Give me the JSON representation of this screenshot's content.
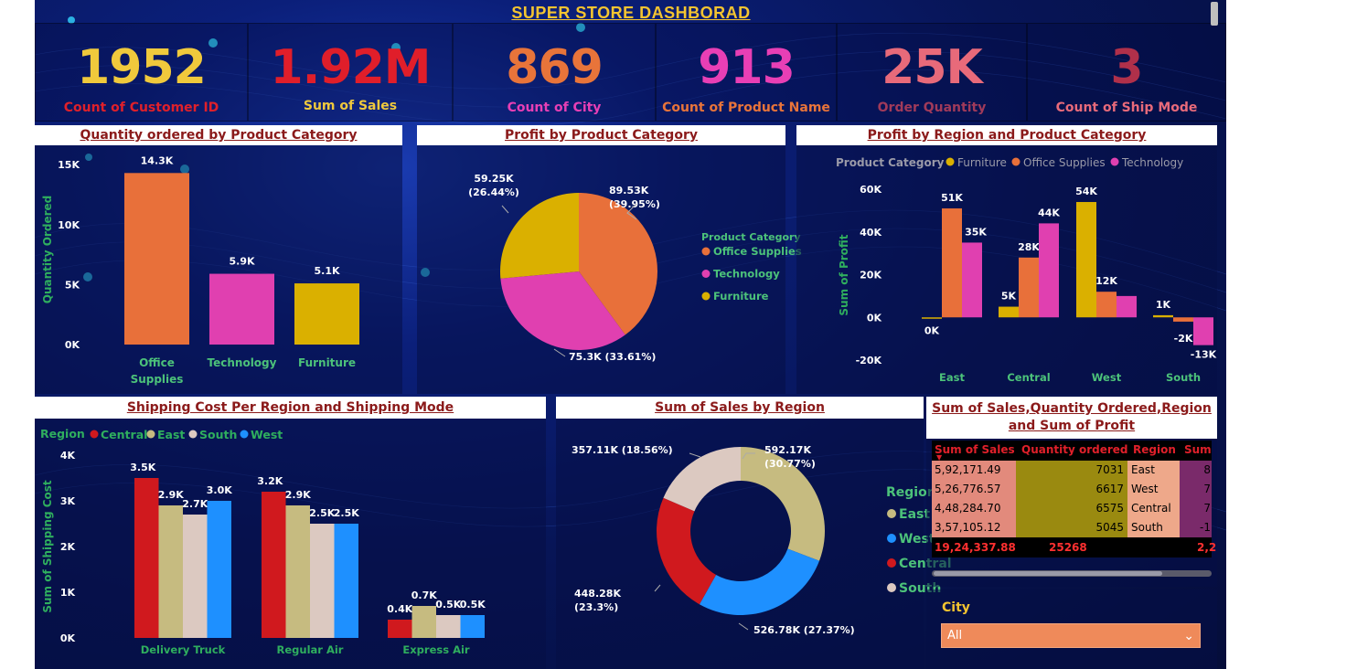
{
  "title": "SUPER STORE DASHBORAD",
  "kpis": [
    {
      "value": "1952",
      "label": "Count of Customer ID",
      "value_color": "#f0c93c",
      "label_color": "#e0202a"
    },
    {
      "value": "1.92M",
      "label": "Sum of Sales",
      "value_color": "#e01e2a",
      "label_color": "#f0c93c"
    },
    {
      "value": "869",
      "label": "Count of City",
      "value_color": "#e8743a",
      "label_color": "#e83fb5"
    },
    {
      "value": "913",
      "label": "Count of Product Name",
      "value_color": "#e83fb5",
      "label_color": "#e8743a"
    },
    {
      "value": "25K",
      "label": "Order Quantity",
      "value_color": "#e86a7a",
      "label_color": "#a03a5a"
    },
    {
      "value": "3",
      "label": "Count of Ship Mode",
      "value_color": "#b0304a",
      "label_color": "#e86a7a"
    }
  ],
  "colors": {
    "orange": "#e8703a",
    "pink": "#e040b0",
    "gold": "#dab000",
    "red": "#d0191e",
    "khaki": "#c6bb80",
    "beige": "#dcc9c1",
    "blue": "#1e90ff",
    "axis_green": "#2fae5e",
    "legend_green": "#4cc27a",
    "text_white": "#ffffff",
    "title_red": "#8b1a1a"
  },
  "charts": {
    "qty_by_category": {
      "title": "Quantity ordered by Product Category",
      "chart_data": {
        "type": "bar",
        "categories": [
          "Office Supplies",
          "Technology",
          "Furniture"
        ],
        "category_lines": [
          [
            "Office",
            "Supplies"
          ],
          [
            "Technology"
          ],
          [
            "Furniture"
          ]
        ],
        "values": [
          14300,
          5900,
          5100
        ],
        "data_labels": [
          "14.3K",
          "5.9K",
          "5.1K"
        ],
        "colors": [
          "#e8703a",
          "#e040b0",
          "#dab000"
        ],
        "ylabel": "Quantity Ordered",
        "ylim": [
          0,
          16000
        ],
        "yticks": [
          0,
          5000,
          10000,
          15000
        ],
        "ytick_labels": [
          "0K",
          "5K",
          "10K",
          "15K"
        ]
      }
    },
    "profit_by_category": {
      "title": "Profit by Product Category",
      "legend_title": "Product Category",
      "chart_data": {
        "type": "pie",
        "labels": [
          "Office Supplies",
          "Technology",
          "Furniture"
        ],
        "values": [
          89530,
          75300,
          59250
        ],
        "data_labels": [
          "89.53K (39.95%)",
          "75.3K (33.61%)",
          "59.25K (26.44%)"
        ],
        "colors": [
          "#e8703a",
          "#e040b0",
          "#dab000"
        ],
        "legend": "right"
      }
    },
    "profit_by_region_category": {
      "title": "Profit by Region and Product Category",
      "legend_title": "Product Category",
      "chart_data": {
        "type": "bar",
        "categories": [
          "East",
          "Central",
          "West",
          "South"
        ],
        "series": [
          {
            "name": "Furniture",
            "values": [
              0,
              5000,
              54000,
              1000
            ],
            "labels": [
              "0K",
              "5K",
              "54K",
              "1K"
            ],
            "color": "#dab000"
          },
          {
            "name": "Office Supplies",
            "values": [
              51000,
              28000,
              12000,
              -2000
            ],
            "labels": [
              "51K",
              "28K",
              "12K",
              "-2K"
            ],
            "color": "#e8703a"
          },
          {
            "name": "Technology",
            "values": [
              35000,
              44000,
              10000,
              -13000
            ],
            "labels": [
              "35K",
              "44K",
              "",
              "-13K"
            ],
            "color": "#e040b0"
          }
        ],
        "ylabel": "Sum of Profit",
        "ylim": [
          -20000,
          60000
        ],
        "yticks": [
          -20000,
          0,
          20000,
          40000,
          60000
        ],
        "ytick_labels": [
          "-20K",
          "0K",
          "20K",
          "40K",
          "60K"
        ],
        "legend": "top-left"
      }
    },
    "shipping_cost": {
      "title": "Shipping Cost Per Region and Shipping Mode",
      "legend_title": "Region",
      "chart_data": {
        "type": "bar",
        "categories": [
          "Delivery Truck",
          "Regular Air",
          "Express Air"
        ],
        "series": [
          {
            "name": "Central",
            "values": [
              3500,
              3200,
              400
            ],
            "labels": [
              "3.5K",
              "3.2K",
              "0.4K"
            ],
            "color": "#d0191e"
          },
          {
            "name": "East",
            "values": [
              2900,
              2900,
              700
            ],
            "labels": [
              "2.9K",
              "2.9K",
              "0.7K"
            ],
            "color": "#c6bb80"
          },
          {
            "name": "South",
            "values": [
              2700,
              2500,
              500
            ],
            "labels": [
              "2.7K",
              "2.5K",
              "0.5K"
            ],
            "color": "#dcc9c1"
          },
          {
            "name": "West",
            "values": [
              3000,
              2500,
              500
            ],
            "labels": [
              "3.0K",
              "2.5K",
              "0.5K"
            ],
            "color": "#1e90ff"
          }
        ],
        "ylabel": "Sum of Shipping Cost",
        "ylim": [
          0,
          4000
        ],
        "yticks": [
          0,
          1000,
          2000,
          3000,
          4000
        ],
        "ytick_labels": [
          "0K",
          "1K",
          "2K",
          "3K",
          "4K"
        ],
        "legend": "top-left"
      }
    },
    "sales_by_region": {
      "title": "Sum of Sales by Region",
      "legend_title": "Region",
      "chart_data": {
        "type": "pie",
        "donut": true,
        "labels": [
          "East",
          "West",
          "Central",
          "South"
        ],
        "values": [
          592170,
          526780,
          448280,
          357110
        ],
        "data_labels": [
          "592.17K (30.77%)",
          "526.78K (27.37%)",
          "448.28K (23.3%)",
          "357.11K (18.56%)"
        ],
        "colors": [
          "#c6bb80",
          "#1e90ff",
          "#d0191e",
          "#dcc9c1"
        ],
        "legend": "right"
      }
    }
  },
  "table": {
    "title_line1": "Sum of Sales,Quantity Ordered,Region",
    "title_line2": "and Sum of Profit",
    "columns": [
      "Sum of Sales",
      "Quantity ordered",
      "Region",
      "Sum"
    ],
    "rows": [
      [
        "5,92,171.49",
        "7031",
        "East",
        "8"
      ],
      [
        "5,26,776.57",
        "6617",
        "West",
        "7"
      ],
      [
        "4,48,284.70",
        "6575",
        "Central",
        "7"
      ],
      [
        "3,57,105.12",
        "5045",
        "South",
        "-1"
      ]
    ],
    "total": [
      "19,24,337.88",
      "25268",
      "",
      "2,2"
    ]
  },
  "city_filter": {
    "label": "City",
    "value": "All"
  }
}
